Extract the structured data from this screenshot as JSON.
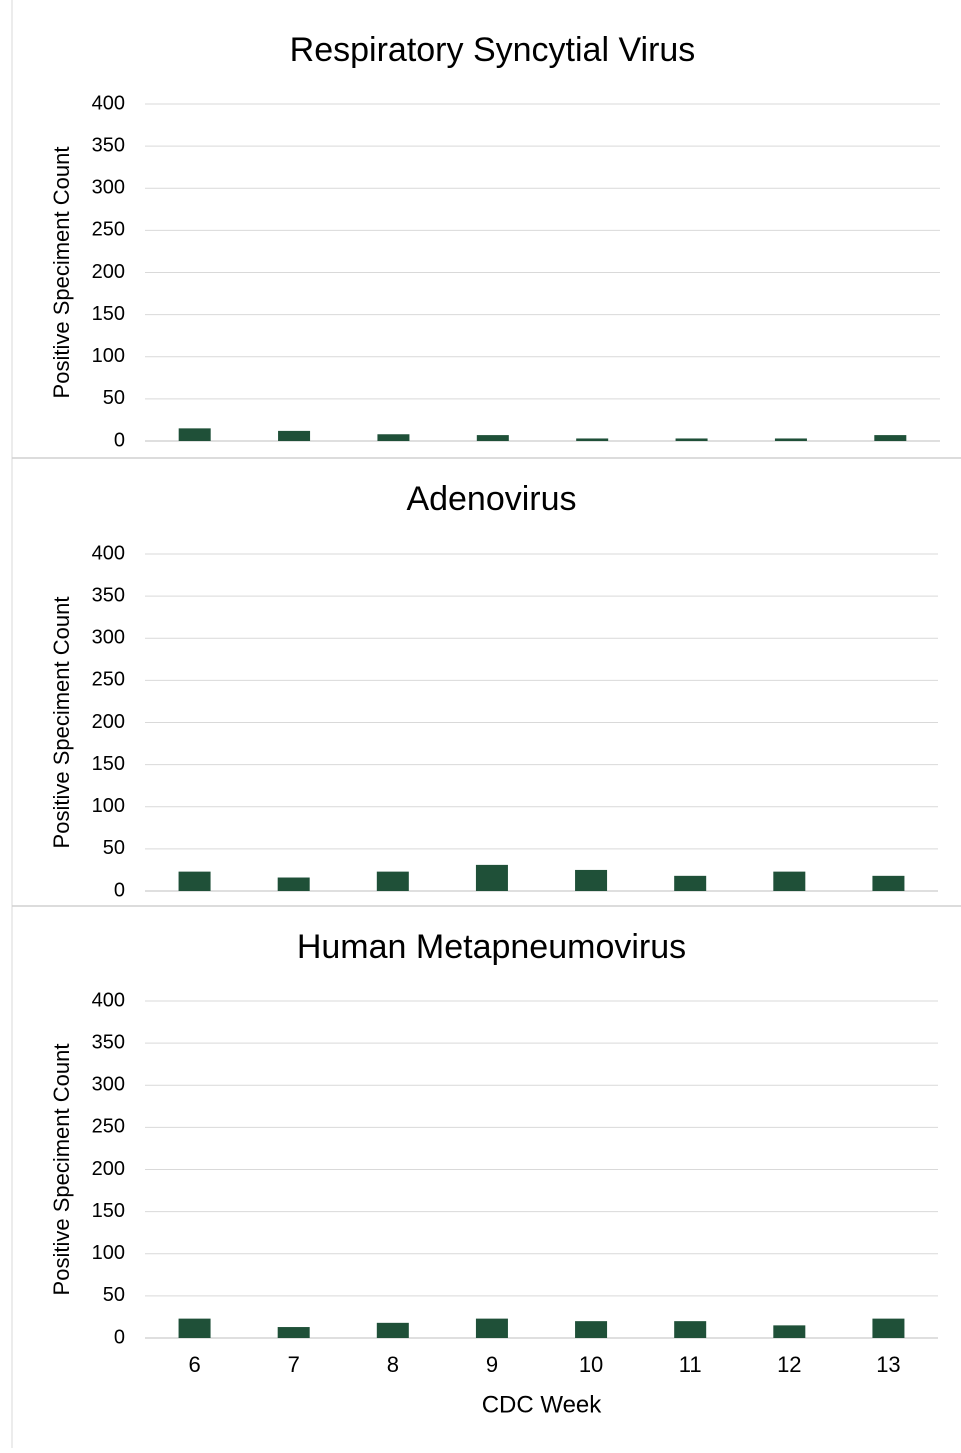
{
  "chart_data": [
    {
      "type": "bar",
      "title": "Respiratory Syncytial Virus",
      "ylabel": "Positive Speciment Count",
      "xlabel": "",
      "ylim": [
        0,
        400
      ],
      "yticks": [
        0,
        50,
        100,
        150,
        200,
        250,
        300,
        350,
        400
      ],
      "categories": [
        "6",
        "7",
        "8",
        "9",
        "10",
        "11",
        "12",
        "13"
      ],
      "values": [
        15,
        12,
        8,
        7,
        3,
        3,
        3,
        7
      ],
      "grid": true,
      "color": "#1f5038",
      "show_category_labels": false
    },
    {
      "type": "bar",
      "title": "Adenovirus",
      "ylabel": "Positive Speciment Count",
      "xlabel": "",
      "ylim": [
        0,
        400
      ],
      "yticks": [
        0,
        50,
        100,
        150,
        200,
        250,
        300,
        350,
        400
      ],
      "categories": [
        "6",
        "7",
        "8",
        "9",
        "10",
        "11",
        "12",
        "13"
      ],
      "values": [
        23,
        16,
        23,
        31,
        25,
        18,
        23,
        18
      ],
      "grid": true,
      "color": "#1f5038",
      "show_category_labels": false
    },
    {
      "type": "bar",
      "title": "Human Metapneumovirus",
      "ylabel": "Positive Speciment Count",
      "xlabel": "CDC Week",
      "ylim": [
        0,
        400
      ],
      "yticks": [
        0,
        50,
        100,
        150,
        200,
        250,
        300,
        350,
        400
      ],
      "categories": [
        "6",
        "7",
        "8",
        "9",
        "10",
        "11",
        "12",
        "13"
      ],
      "values": [
        23,
        13,
        18,
        23,
        20,
        20,
        15,
        23
      ],
      "grid": true,
      "color": "#1f5038",
      "show_category_labels": true
    }
  ]
}
